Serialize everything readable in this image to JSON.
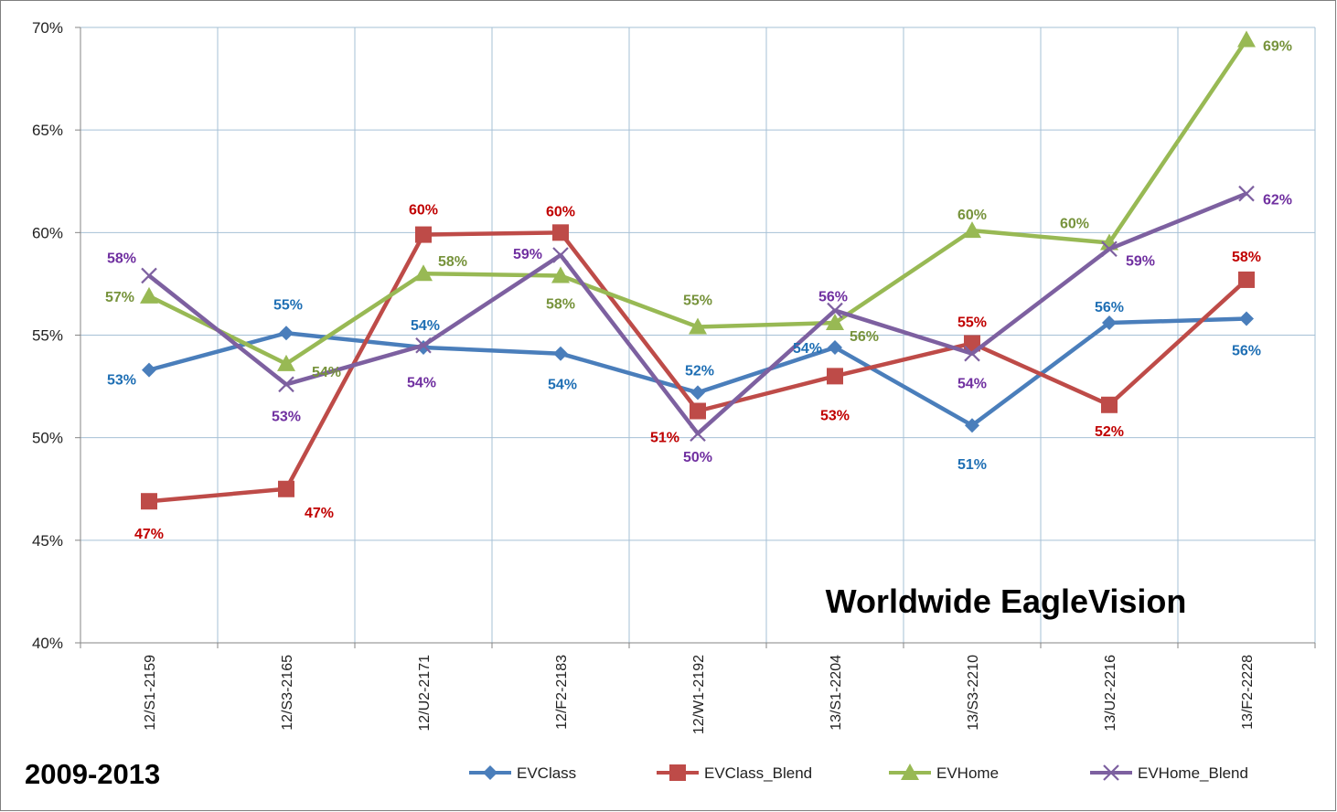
{
  "chart_data": {
    "type": "line",
    "title": "",
    "annotations": [
      "Worldwide EagleVision",
      "2009-2013"
    ],
    "xlabel": "",
    "ylabel": "",
    "ylim": [
      0.4,
      0.7
    ],
    "y_ticks": [
      "40%",
      "45%",
      "50%",
      "55%",
      "60%",
      "65%",
      "70%"
    ],
    "grid": true,
    "legend_position": "bottom",
    "categories": [
      "12/S1-2159",
      "12/S3-2165",
      "12/U2-2171",
      "12/F2-2183",
      "12/W1-2192",
      "13/S1-2204",
      "13/S3-2210",
      "13/U2-2216",
      "13/F2-2228"
    ],
    "series": [
      {
        "name": "EVClass",
        "color": "#4a7ebb",
        "marker": "diamond",
        "values": [
          0.533,
          0.551,
          0.544,
          0.541,
          0.522,
          0.544,
          0.506,
          0.556,
          0.558
        ],
        "labels": [
          "53%",
          "55%",
          "54%",
          "54%",
          "52%",
          "54%",
          "51%",
          "56%",
          "56%"
        ],
        "label_color": "#1f6fb4"
      },
      {
        "name": "EVClass_Blend",
        "color": "#be4b48",
        "marker": "square",
        "values": [
          0.469,
          0.475,
          0.599,
          0.6,
          0.513,
          0.53,
          0.546,
          0.516,
          0.577
        ],
        "labels": [
          "47%",
          "47%",
          "60%",
          "60%",
          "51%",
          "53%",
          "55%",
          "52%",
          "58%"
        ],
        "label_color": "#c00000"
      },
      {
        "name": "EVHome",
        "color": "#98b954",
        "marker": "triangle",
        "values": [
          0.569,
          0.536,
          0.58,
          0.579,
          0.554,
          0.556,
          0.601,
          0.595,
          0.694
        ],
        "labels": [
          "57%",
          "54%",
          "58%",
          "58%",
          "55%",
          "56%",
          "60%",
          "60%",
          "69%"
        ],
        "label_color": "#77933c"
      },
      {
        "name": "EVHome_Blend",
        "color": "#7d60a0",
        "marker": "x",
        "values": [
          0.579,
          0.526,
          0.545,
          0.589,
          0.502,
          0.562,
          0.541,
          0.592,
          0.619
        ],
        "labels": [
          "58%",
          "53%",
          "54%",
          "59%",
          "50%",
          "56%",
          "54%",
          "59%",
          "62%"
        ],
        "label_color": "#7030a0"
      }
    ]
  }
}
